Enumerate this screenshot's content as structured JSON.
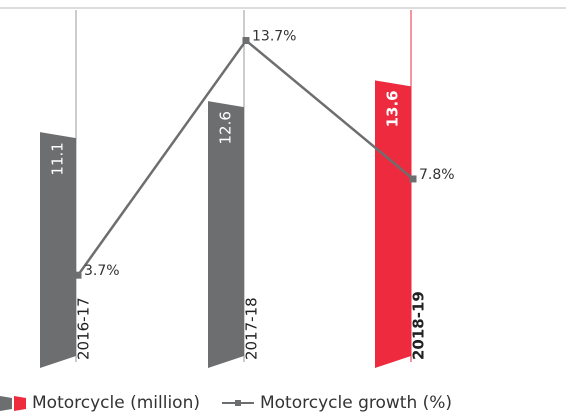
{
  "chart_data": {
    "type": "bar",
    "categories": [
      "2016-17",
      "2017-18",
      "2018-19"
    ],
    "highlight": "2018-19",
    "series": [
      {
        "name": "Motorcycle (million)",
        "type": "bar",
        "colors": [
          "#6d6e70",
          "#6d6e70",
          "#ee2a3f"
        ],
        "values": [
          11.1,
          12.6,
          13.6
        ]
      },
      {
        "name": "Motorcycle growth (%)",
        "type": "line",
        "axis": "y2",
        "color": "#6d6e70",
        "values": [
          3.7,
          13.7,
          7.8
        ],
        "value_labels": [
          "3.7%",
          "13.7%",
          "7.8%"
        ]
      }
    ],
    "ylim": [
      0,
      17
    ],
    "y2lim": [
      0,
      15
    ]
  }
}
